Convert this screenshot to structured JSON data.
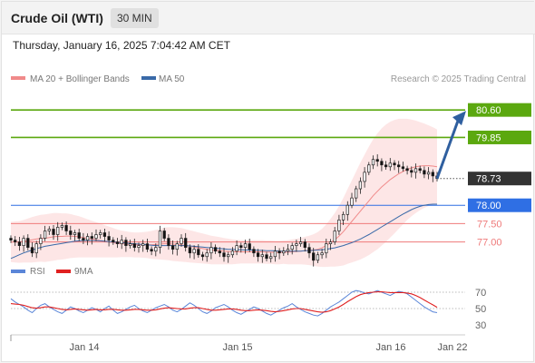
{
  "header": {
    "instrument": "Crude Oil (WTI)",
    "timeframe": "30 MIN",
    "datetime": "Thursday, January 16, 2025 7:04:42 AM CET"
  },
  "colors": {
    "resistance": "#5ba80f",
    "support": "#ef7a7a",
    "pivot": "#2f6fe4",
    "current": "#333333",
    "bollinger_fill": "#fde2e2",
    "ma20": "#f08a8a",
    "ma50": "#3a6aa8",
    "rsi": "#5b86d8",
    "rsi_ma": "#e02020",
    "arrow": "#2f5f9f",
    "candle_up": "#ffffff",
    "candle_down": "#111111"
  },
  "chart_data": [
    {
      "type": "candlestick",
      "legend": [
        {
          "label": "MA 20 + Bollinger Bands",
          "color": "#f08a8a"
        },
        {
          "label": "MA 50",
          "color": "#3a6aa8"
        }
      ],
      "source": "Research © 2025 Trading Central",
      "x_tick_labels": [
        "Jan 14",
        "Jan 15",
        "Jan 16",
        "Jan 22"
      ],
      "levels": [
        {
          "value": 80.6,
          "label": "80.60",
          "kind": "resistance"
        },
        {
          "value": 79.85,
          "label": "79.85",
          "kind": "resistance"
        },
        {
          "value": 78.73,
          "label": "78.73",
          "kind": "current"
        },
        {
          "value": 78.0,
          "label": "78.00",
          "kind": "pivot"
        },
        {
          "value": 77.5,
          "label": "77.50",
          "kind": "support"
        },
        {
          "value": 77.0,
          "label": "77.00",
          "kind": "support"
        }
      ],
      "close": [
        77.05,
        77.0,
        76.9,
        77.1,
        76.85,
        76.7,
        76.95,
        77.1,
        77.3,
        77.35,
        77.2,
        77.4,
        77.45,
        77.3,
        77.2,
        77.25,
        77.1,
        77.05,
        77.15,
        77.1,
        77.2,
        77.25,
        77.15,
        77.05,
        77.0,
        76.95,
        77.05,
        76.9,
        76.95,
        76.85,
        76.9,
        76.95,
        76.8,
        76.75,
        76.85,
        77.3,
        77.1,
        76.9,
        76.8,
        76.95,
        77.1,
        76.85,
        76.7,
        76.8,
        76.65,
        76.6,
        76.7,
        76.85,
        76.75,
        76.7,
        76.6,
        76.65,
        76.75,
        76.9,
        76.85,
        76.95,
        76.8,
        76.7,
        76.6,
        76.65,
        76.55,
        76.6,
        76.75,
        76.7,
        76.75,
        76.8,
        76.9,
        76.95,
        77.0,
        76.85,
        76.7,
        76.5,
        76.65,
        76.7,
        76.95,
        77.0,
        77.3,
        77.6,
        77.75,
        78.0,
        78.2,
        78.45,
        78.65,
        78.9,
        79.1,
        79.25,
        79.2,
        79.1,
        79.05,
        79.15,
        79.1,
        79.05,
        79.0,
        78.95,
        78.9,
        79.0,
        78.95,
        78.85,
        78.9,
        78.8,
        78.73
      ],
      "ma20": [
        77.0,
        77.0,
        77.0,
        77.02,
        77.04,
        77.06,
        77.08,
        77.1,
        77.1,
        77.12,
        77.14,
        77.15,
        77.15,
        77.16,
        77.16,
        77.15,
        77.14,
        77.12,
        77.1,
        77.08,
        77.06,
        77.04,
        77.02,
        77.0,
        76.98,
        76.96,
        76.95,
        76.94,
        76.93,
        76.92,
        76.92,
        76.92,
        76.92,
        76.92,
        76.93,
        76.94,
        76.95,
        76.95,
        76.94,
        76.93,
        76.92,
        76.9,
        76.88,
        76.86,
        76.84,
        76.82,
        76.8,
        76.78,
        76.77,
        76.76,
        76.75,
        76.74,
        76.73,
        76.73,
        76.73,
        76.73,
        76.73,
        76.73,
        76.73,
        76.73,
        76.72,
        76.72,
        76.71,
        76.71,
        76.72,
        76.72,
        76.73,
        76.74,
        76.75,
        76.76,
        76.77,
        76.78,
        76.8,
        76.84,
        76.9,
        76.98,
        77.06,
        77.16,
        77.28,
        77.42,
        77.56,
        77.7,
        77.84,
        77.98,
        78.12,
        78.26,
        78.38,
        78.5,
        78.6,
        78.7,
        78.78,
        78.86,
        78.92,
        78.98,
        79.02,
        79.05,
        79.07,
        79.08,
        79.08,
        79.07,
        79.05
      ],
      "ma50": [
        76.55,
        76.6,
        76.65,
        76.7,
        76.74,
        76.78,
        76.82,
        76.85,
        76.88,
        76.9,
        76.92,
        76.94,
        76.96,
        76.98,
        77.0,
        77.02,
        77.03,
        77.04,
        77.04,
        77.04,
        77.04,
        77.03,
        77.02,
        77.01,
        77.0,
        76.99,
        76.98,
        76.97,
        76.96,
        76.95,
        76.94,
        76.93,
        76.92,
        76.91,
        76.9,
        76.9,
        76.9,
        76.9,
        76.9,
        76.9,
        76.9,
        76.9,
        76.89,
        76.88,
        76.87,
        76.86,
        76.85,
        76.84,
        76.83,
        76.82,
        76.81,
        76.8,
        76.8,
        76.79,
        76.79,
        76.78,
        76.78,
        76.78,
        76.77,
        76.77,
        76.76,
        76.76,
        76.76,
        76.75,
        76.75,
        76.75,
        76.75,
        76.75,
        76.75,
        76.76,
        76.76,
        76.77,
        76.78,
        76.79,
        76.8,
        76.82,
        76.84,
        76.87,
        76.9,
        76.94,
        76.98,
        77.03,
        77.08,
        77.14,
        77.2,
        77.27,
        77.34,
        77.41,
        77.48,
        77.55,
        77.62,
        77.69,
        77.76,
        77.82,
        77.88,
        77.93,
        77.97,
        78.0,
        78.02,
        78.03,
        78.03
      ],
      "bb_width": [
        0.55,
        0.56,
        0.57,
        0.58,
        0.6,
        0.62,
        0.63,
        0.64,
        0.65,
        0.65,
        0.65,
        0.64,
        0.63,
        0.62,
        0.6,
        0.58,
        0.56,
        0.54,
        0.52,
        0.5,
        0.48,
        0.46,
        0.44,
        0.42,
        0.4,
        0.38,
        0.36,
        0.35,
        0.34,
        0.34,
        0.34,
        0.35,
        0.36,
        0.38,
        0.4,
        0.42,
        0.44,
        0.45,
        0.46,
        0.46,
        0.46,
        0.45,
        0.44,
        0.43,
        0.42,
        0.41,
        0.4,
        0.39,
        0.38,
        0.37,
        0.36,
        0.35,
        0.34,
        0.33,
        0.32,
        0.32,
        0.32,
        0.32,
        0.32,
        0.32,
        0.32,
        0.32,
        0.32,
        0.32,
        0.32,
        0.33,
        0.34,
        0.35,
        0.36,
        0.38,
        0.4,
        0.43,
        0.47,
        0.52,
        0.58,
        0.65,
        0.73,
        0.82,
        0.92,
        1.02,
        1.12,
        1.22,
        1.32,
        1.4,
        1.48,
        1.54,
        1.58,
        1.6,
        1.6,
        1.58,
        1.55,
        1.5,
        1.44,
        1.38,
        1.32,
        1.26,
        1.2,
        1.15,
        1.1,
        1.06,
        1.02
      ],
      "projection": {
        "from": 78.73,
        "to": 80.6
      },
      "y_range": [
        76.0,
        81.0
      ]
    },
    {
      "type": "line",
      "title": "RSI",
      "legend": [
        {
          "label": "RSI",
          "color": "#5b86d8"
        },
        {
          "label": "9MA",
          "color": "#e02020"
        }
      ],
      "y_ticks": [
        70,
        50,
        30
      ],
      "y_range": [
        20,
        80
      ],
      "rsi": [
        62,
        58,
        55,
        52,
        48,
        45,
        50,
        54,
        56,
        52,
        49,
        46,
        44,
        48,
        52,
        50,
        47,
        45,
        48,
        51,
        49,
        46,
        50,
        53,
        48,
        44,
        46,
        49,
        52,
        54,
        50,
        47,
        45,
        48,
        51,
        53,
        55,
        52,
        48,
        46,
        49,
        53,
        57,
        54,
        50,
        46,
        44,
        47,
        51,
        53,
        55,
        52,
        48,
        45,
        43,
        46,
        49,
        52,
        50,
        47,
        44,
        42,
        45,
        48,
        51,
        53,
        56,
        52,
        49,
        46,
        44,
        42,
        41,
        44,
        48,
        52,
        55,
        58,
        62,
        66,
        70,
        72,
        71,
        69,
        68,
        70,
        72,
        70,
        68,
        66,
        69,
        71,
        70,
        68,
        64,
        60,
        56,
        52,
        49,
        46,
        45
      ],
      "rsi_ma": [
        56,
        55.5,
        55,
        54,
        52.5,
        51,
        50.5,
        51,
        52,
        52,
        51,
        50,
        49,
        48.5,
        49,
        49.5,
        49,
        48.5,
        48,
        48.5,
        49,
        48.5,
        48.5,
        49,
        49,
        48.5,
        48,
        48,
        48.5,
        49,
        49,
        48.5,
        48,
        48,
        48.5,
        49.5,
        50.5,
        51,
        50.5,
        50,
        49.5,
        49.5,
        50.5,
        51,
        51,
        50,
        49,
        48,
        48,
        48.5,
        49,
        49.5,
        49.5,
        49,
        48,
        47.5,
        47.5,
        48,
        48.5,
        48,
        47.5,
        46.5,
        46,
        46.5,
        47.5,
        48.5,
        49.5,
        50,
        50,
        49,
        48,
        47,
        46,
        45.5,
        46,
        47.5,
        49.5,
        52,
        55,
        58.5,
        61.5,
        64.5,
        67,
        68.5,
        69.5,
        70,
        70.5,
        70.5,
        70,
        69.5,
        69.5,
        69.5,
        69.5,
        69,
        68,
        66,
        63.5,
        60.5,
        57.5,
        54.5,
        51.5
      ]
    }
  ]
}
